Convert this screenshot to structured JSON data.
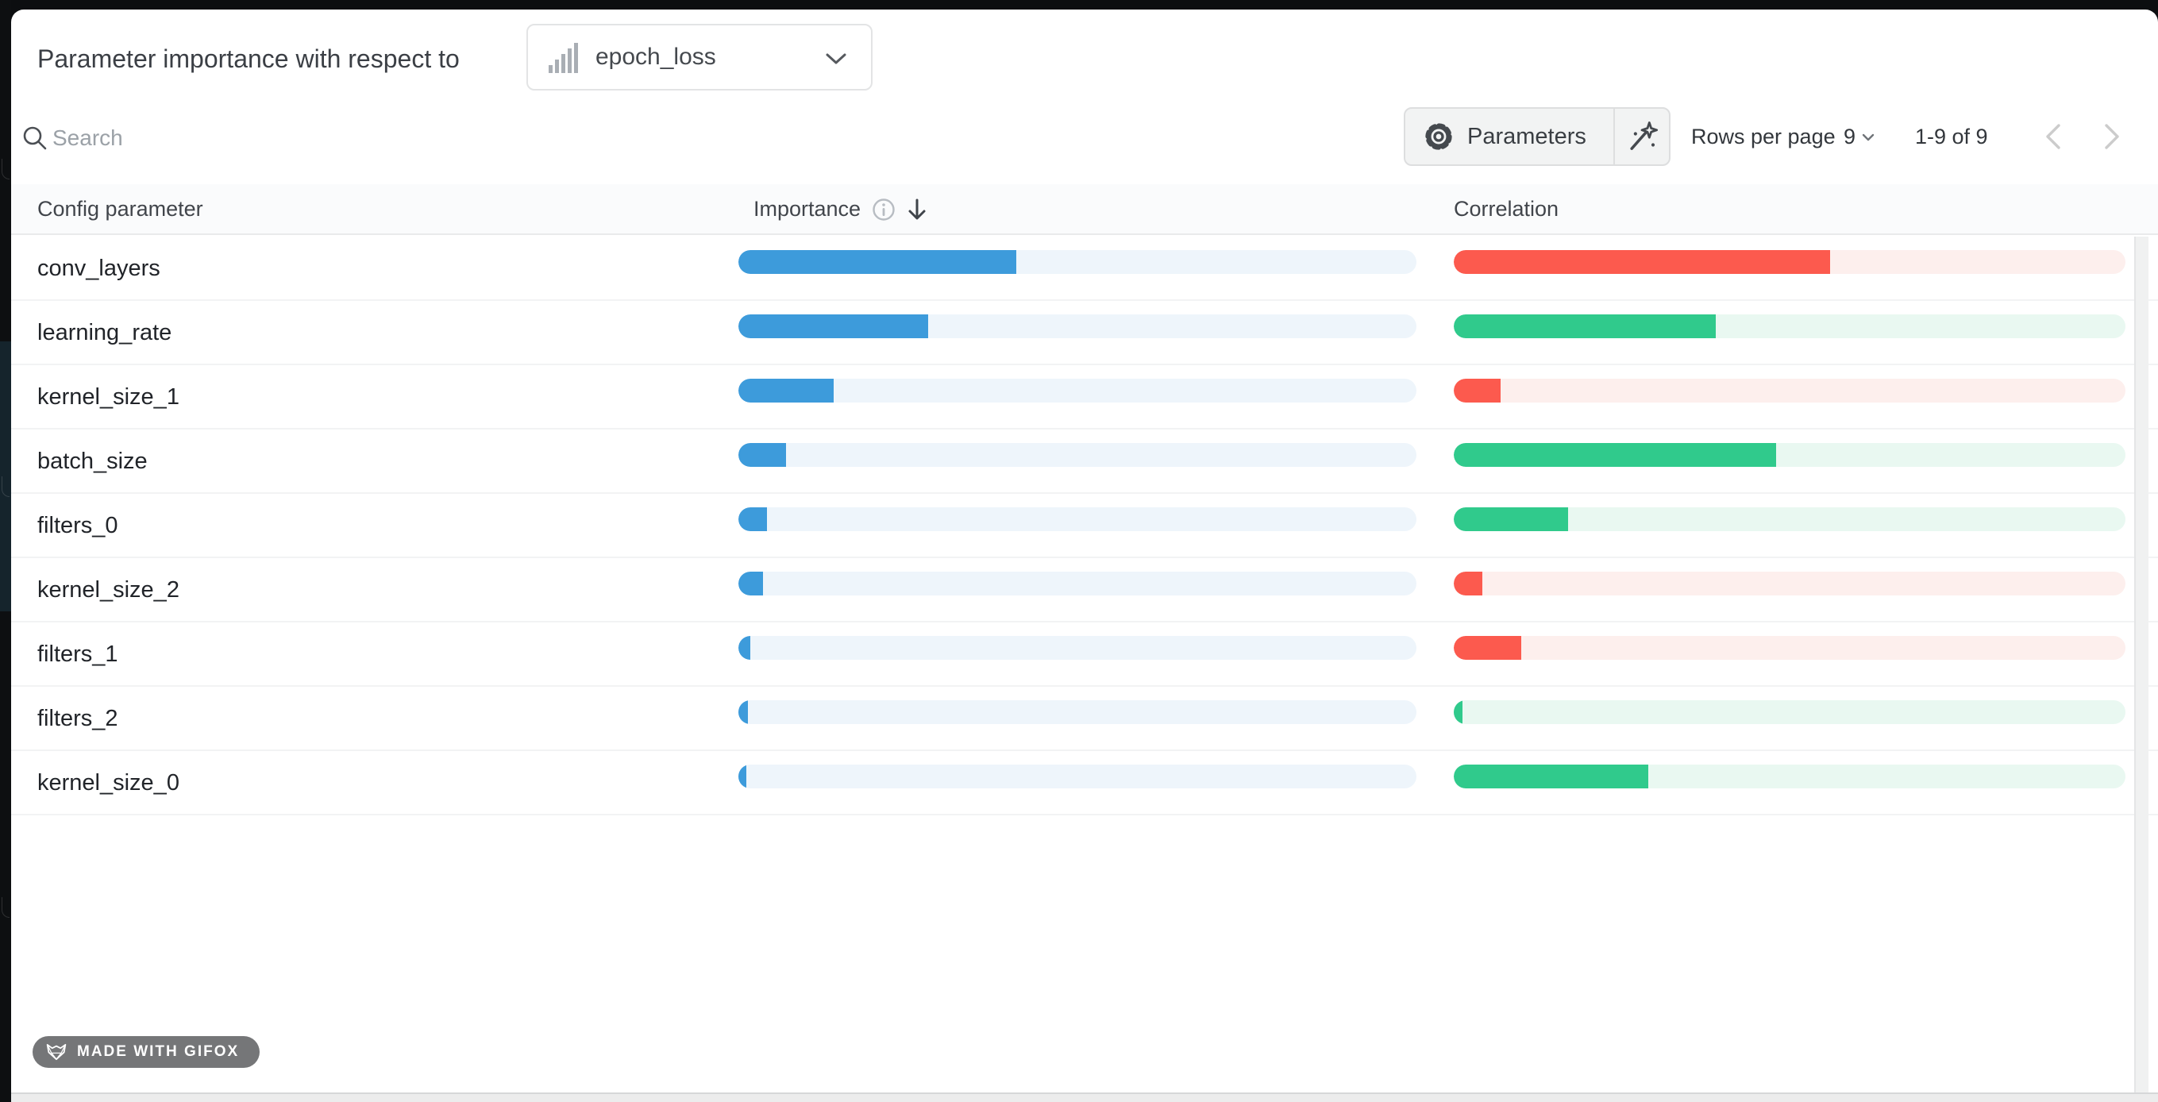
{
  "panel": {
    "title": "Parameter importance with respect to",
    "metric": {
      "value": "epoch_loss",
      "icon": "bar-chart"
    }
  },
  "toolbar": {
    "search_placeholder": "Search",
    "parameters_label": "Parameters",
    "rows_per_page_label": "Rows per page",
    "rows_per_page_value": "9",
    "range_label": "1-9 of 9"
  },
  "table": {
    "header": {
      "config": "Config parameter",
      "importance": "Importance",
      "correlation": "Correlation"
    },
    "sort": {
      "column": "importance",
      "direction": "desc"
    },
    "rows": [
      {
        "name": "conv_layers",
        "importance": 0.41,
        "correlation": -0.56
      },
      {
        "name": "learning_rate",
        "importance": 0.28,
        "correlation": 0.39
      },
      {
        "name": "kernel_size_1",
        "importance": 0.14,
        "correlation": -0.07
      },
      {
        "name": "batch_size",
        "importance": 0.07,
        "correlation": 0.48
      },
      {
        "name": "filters_0",
        "importance": 0.042,
        "correlation": 0.17
      },
      {
        "name": "kernel_size_2",
        "importance": 0.036,
        "correlation": -0.042
      },
      {
        "name": "filters_1",
        "importance": 0.017,
        "correlation": -0.1
      },
      {
        "name": "filters_2",
        "importance": 0.014,
        "correlation": 0.013
      },
      {
        "name": "kernel_size_0",
        "importance": 0.012,
        "correlation": 0.29
      }
    ]
  },
  "colors": {
    "importance_bar": "#3d9bdb",
    "importance_track": "#eef5fb",
    "positive_bar": "#30ca8c",
    "positive_track": "#e9f8f1",
    "negative_bar": "#fc5a4e",
    "negative_track": "#fdefed"
  },
  "badge": {
    "label": "MADE WITH GIFOX"
  }
}
